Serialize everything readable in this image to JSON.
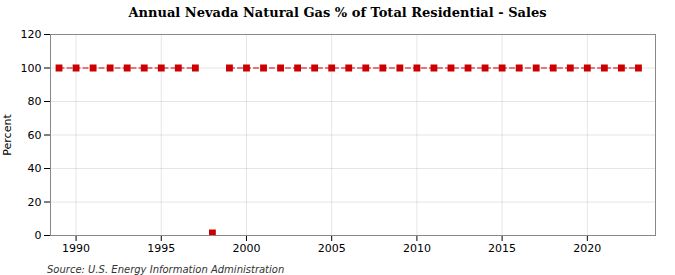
{
  "chart_data": {
    "type": "line",
    "title": "Annual Nevada Natural Gas % of Total Residential - Sales",
    "y_label": "Percent",
    "annotations": [
      "Source: U.S. Energy Information Administration"
    ],
    "x": [
      1989,
      1990,
      1991,
      1992,
      1993,
      1994,
      1995,
      1996,
      1997,
      1998,
      1999,
      2000,
      2001,
      2002,
      2003,
      2004,
      2005,
      2006,
      2007,
      2008,
      2009,
      2010,
      2011,
      2012,
      2013,
      2014,
      2015,
      2016,
      2017,
      2018,
      2019,
      2020,
      2021,
      2022,
      2023
    ],
    "series": [
      {
        "type": "line",
        "color": "#cc0000",
        "marker": "square",
        "line_style": "dashed",
        "values": [
          100.0,
          100.0,
          100.0,
          100.0,
          100.0,
          100.0,
          100.0,
          100.0,
          100.0,
          null,
          100.0,
          100.0,
          100.0,
          100.0,
          100.0,
          100.0,
          100.0,
          100.0,
          100.0,
          100.0,
          100.0,
          100.0,
          100.0,
          100.0,
          100.0,
          100.0,
          100.0,
          100.0,
          100.0,
          100.0,
          100.0,
          100.0,
          100.0,
          100.0,
          100.0
        ]
      },
      {
        "type": "scatter",
        "color": "#cc0000",
        "marker": "square",
        "values": [
          null,
          null,
          null,
          null,
          null,
          null,
          null,
          null,
          null,
          1.5,
          null,
          null,
          null,
          null,
          null,
          null,
          null,
          null,
          null,
          null,
          null,
          null,
          null,
          null,
          null,
          null,
          null,
          null,
          null,
          null,
          null,
          null,
          null,
          null,
          null
        ]
      }
    ],
    "xlim": [
      1988.5,
      2024
    ],
    "ylim": [
      0,
      120
    ],
    "xticks": [
      1990,
      1995,
      2000,
      2005,
      2010,
      2015,
      2020
    ],
    "yticks": [
      0,
      20,
      40,
      60,
      80,
      100,
      120
    ],
    "grid": true
  }
}
